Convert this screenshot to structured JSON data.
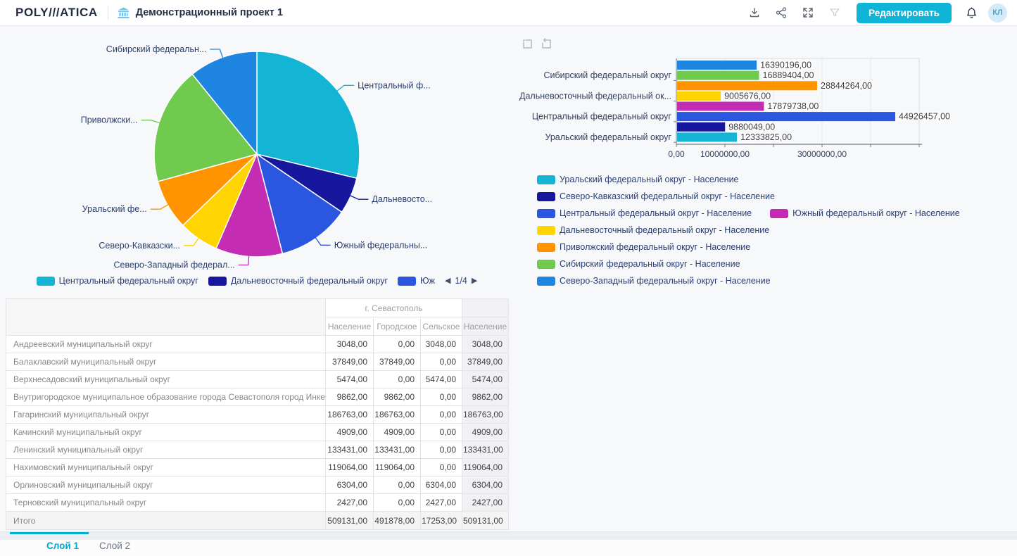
{
  "header": {
    "logo": "POLY///ATICA",
    "project_title": "Демонстрационный проект 1",
    "edit_button": "Редактировать",
    "avatar_initials": "КЛ"
  },
  "colors": {
    "accent": "#0fb4d6",
    "palette": {
      "cyan": "#14b4d4",
      "navy": "#17179e",
      "royal": "#2a56e0",
      "magenta": "#c52cb4",
      "yellow": "#ffd400",
      "orange": "#ff9300",
      "green": "#6fca4d",
      "dodger": "#1e86e0"
    }
  },
  "chart_data": [
    {
      "type": "pie",
      "note": "slices clockwise from 12 o'clock",
      "slices": [
        {
          "label": "Центральный федеральный округ",
          "display_label": "Центральный ф...",
          "value": 44926457,
          "color": "#14b4d4"
        },
        {
          "label": "Дальневосточный федеральный округ",
          "display_label": "Дальневосто...",
          "value": 9005676,
          "color": "#17179e"
        },
        {
          "label": "Южный федеральный округ",
          "display_label": "Южный федеральны...",
          "value": 17879738,
          "color": "#2a56e0"
        },
        {
          "label": "Северо-Западный федеральный округ",
          "display_label": "Северо-Западный федерал...",
          "value": 16390196,
          "color": "#c52cb4"
        },
        {
          "label": "Северо-Кавказский федеральный округ",
          "display_label": "Северо-Кавказски...",
          "value": 9880049,
          "color": "#ffd400"
        },
        {
          "label": "Уральский федеральный округ",
          "display_label": "Уральский фе...",
          "value": 12333825,
          "color": "#ff9300"
        },
        {
          "label": "Приволжский федеральный округ",
          "display_label": "Приволжски...",
          "value": 28844264,
          "color": "#6fca4d"
        },
        {
          "label": "Сибирский федеральный округ",
          "display_label": "Сибирский федеральн...",
          "value": 16889404,
          "color": "#1e86e0"
        }
      ],
      "legend": {
        "visible_items": [
          {
            "label": "Центральный федеральный округ",
            "color": "#14b4d4"
          },
          {
            "label": "Дальневосточный федеральный округ",
            "color": "#17179e"
          },
          {
            "label": "Юж",
            "color": "#2a56e0"
          }
        ],
        "page_indicator": "1/4",
        "prev_arrow": "◀",
        "next_arrow": "▶"
      }
    },
    {
      "type": "bar",
      "orientation": "horizontal",
      "bars": [
        {
          "label": "Северо-Западный федеральный округ",
          "value": 16390196,
          "value_label": "16390196,00",
          "color": "#1e86e0",
          "axis_label": ""
        },
        {
          "label": "Сибирский федеральный округ",
          "value": 16889404,
          "value_label": "16889404,00",
          "color": "#6fca4d",
          "axis_label": "Сибирский федеральный округ"
        },
        {
          "label": "Приволжский федеральный округ",
          "value": 28844264,
          "value_label": "28844264,00",
          "color": "#ff9300",
          "axis_label": ""
        },
        {
          "label": "Дальневосточный федеральный округ",
          "value": 9005676,
          "value_label": "9005676,00",
          "color": "#ffd400",
          "axis_label": "Дальневосточный федеральный ок..."
        },
        {
          "label": "Южный федеральный округ",
          "value": 17879738,
          "value_label": "17879738,00",
          "color": "#c52cb4",
          "axis_label": ""
        },
        {
          "label": "Центральный федеральный округ",
          "value": 44926457,
          "value_label": "44926457,00",
          "color": "#2a56e0",
          "axis_label": "Центральный федеральный округ"
        },
        {
          "label": "Северо-Кавказский федеральный округ",
          "value": 9880049,
          "value_label": "9880049,00",
          "color": "#17179e",
          "axis_label": ""
        },
        {
          "label": "Уральский федеральный округ",
          "value": 12333825,
          "value_label": "12333825,00",
          "color": "#14b4d4",
          "axis_label": "Уральский федеральный округ"
        }
      ],
      "x_axis": {
        "min": 0,
        "max": 50000000,
        "ticks": [
          0,
          10000000,
          20000000,
          30000000,
          40000000,
          50000000
        ],
        "tick_labels": [
          "0,00",
          "10000000,00",
          "",
          "30000000,00",
          "",
          ""
        ]
      },
      "grid": true,
      "legend_rows": [
        [
          {
            "label": "Уральский федеральный округ - Население",
            "color": "#14b4d4"
          }
        ],
        [
          {
            "label": "Северо-Кавказский федеральный округ - Население",
            "color": "#17179e"
          }
        ],
        [
          {
            "label": "Центральный федеральный округ - Население",
            "color": "#2a56e0"
          },
          {
            "label": "Южный федеральный округ - Население",
            "color": "#c52cb4"
          }
        ],
        [
          {
            "label": "Дальневосточный федеральный округ - Население",
            "color": "#ffd400"
          }
        ],
        [
          {
            "label": "Приволжский федеральный округ - Население",
            "color": "#ff9300"
          }
        ],
        [
          {
            "label": "Сибирский федеральный округ - Население",
            "color": "#6fca4d"
          }
        ],
        [
          {
            "label": "Северо-Западный федеральный округ - Население",
            "color": "#1e86e0"
          }
        ]
      ]
    },
    {
      "type": "table",
      "group_header": "г. Севастополь",
      "columns": [
        "Население",
        "Городское",
        "Сельское",
        "Население"
      ],
      "rows": [
        {
          "label": "Андреевский муниципальный округ",
          "values": [
            "3048,00",
            "0,00",
            "3048,00",
            "3048,00"
          ]
        },
        {
          "label": "Балаклавский муниципальный округ",
          "values": [
            "37849,00",
            "37849,00",
            "0,00",
            "37849,00"
          ]
        },
        {
          "label": "Верхнесадовский муниципальный округ",
          "values": [
            "5474,00",
            "0,00",
            "5474,00",
            "5474,00"
          ]
        },
        {
          "label": "Внутригородское муниципальное образование города Севастополя город Инкерман",
          "values": [
            "9862,00",
            "9862,00",
            "0,00",
            "9862,00"
          ]
        },
        {
          "label": "Гагаринский муниципальный округ",
          "values": [
            "186763,00",
            "186763,00",
            "0,00",
            "186763,00"
          ]
        },
        {
          "label": "Качинский муниципальный округ",
          "values": [
            "4909,00",
            "4909,00",
            "0,00",
            "4909,00"
          ]
        },
        {
          "label": "Ленинский муниципальный округ",
          "values": [
            "133431,00",
            "133431,00",
            "0,00",
            "133431,00"
          ]
        },
        {
          "label": "Нахимовский муниципальный округ",
          "values": [
            "119064,00",
            "119064,00",
            "0,00",
            "119064,00"
          ]
        },
        {
          "label": "Орлиновский муниципальный округ",
          "values": [
            "6304,00",
            "0,00",
            "6304,00",
            "6304,00"
          ]
        },
        {
          "label": "Терновский муниципальный округ",
          "values": [
            "2427,00",
            "0,00",
            "2427,00",
            "2427,00"
          ]
        }
      ],
      "total_row": {
        "label": "Итого",
        "values": [
          "509131,00",
          "491878,00",
          "17253,00",
          "509131,00"
        ]
      }
    }
  ],
  "tabs": [
    {
      "label": "Слой 1",
      "active": true
    },
    {
      "label": "Слой 2",
      "active": false
    }
  ]
}
